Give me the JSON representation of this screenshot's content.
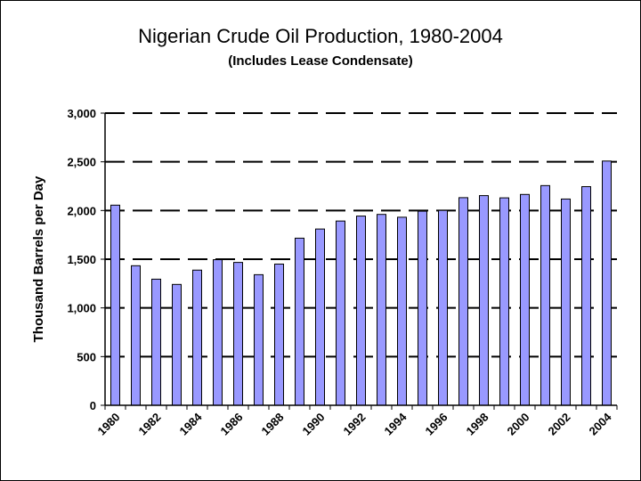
{
  "chart_data": {
    "type": "bar",
    "title": "Nigerian Crude Oil Production, 1980-2004",
    "subtitle": "(Includes Lease Condensate)",
    "xlabel": "",
    "ylabel": "Thousand Barrels per Day",
    "ylim": [
      0,
      3000
    ],
    "yticks": [
      0,
      500,
      1000,
      1500,
      2000,
      2500,
      3000
    ],
    "ytick_labels": [
      "0",
      "500",
      "1,000",
      "1,500",
      "2,000",
      "2,500",
      "3,000"
    ],
    "categories": [
      "1980",
      "1981",
      "1982",
      "1983",
      "1984",
      "1985",
      "1986",
      "1987",
      "1988",
      "1989",
      "1990",
      "1991",
      "1992",
      "1993",
      "1994",
      "1995",
      "1996",
      "1997",
      "1998",
      "1999",
      "2000",
      "2001",
      "2002",
      "2003",
      "2004"
    ],
    "xtick_labels": [
      "1980",
      "1982",
      "1984",
      "1986",
      "1988",
      "1990",
      "1992",
      "1994",
      "1996",
      "1998",
      "2000",
      "2002",
      "2004"
    ],
    "values": [
      2055,
      1433,
      1295,
      1241,
      1388,
      1495,
      1467,
      1341,
      1450,
      1716,
      1810,
      1892,
      1943,
      1960,
      1931,
      1993,
      2001,
      2132,
      2153,
      2130,
      2165,
      2256,
      2118,
      2245,
      2508
    ],
    "grid": "dashed horizontal",
    "legend": "none",
    "bar_color": "#9999ff"
  }
}
